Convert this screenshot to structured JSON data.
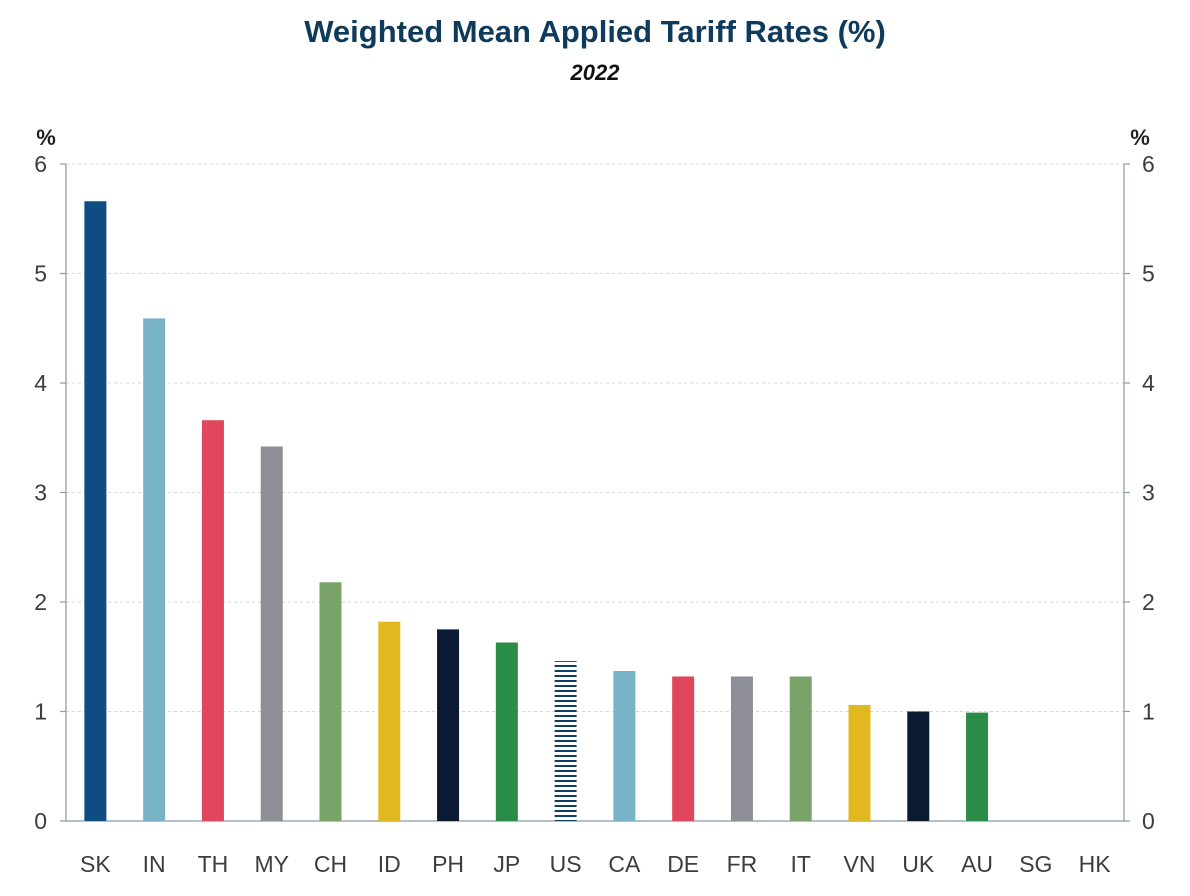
{
  "chart_data": {
    "type": "bar",
    "title": "Weighted Mean Applied Tariff Rates (%)",
    "subtitle": "2022",
    "y_unit_left": "%",
    "y_unit_right": "%",
    "ylim": [
      0,
      6
    ],
    "yticks": [
      0,
      1,
      2,
      3,
      4,
      5,
      6
    ],
    "grid": true,
    "categories": [
      "SK",
      "IN",
      "TH",
      "MY",
      "CH",
      "ID",
      "PH",
      "JP",
      "US",
      "CA",
      "DE",
      "FR",
      "IT",
      "VN",
      "UK",
      "AU",
      "SG",
      "HK"
    ],
    "values": [
      5.66,
      4.59,
      3.66,
      3.42,
      2.18,
      1.82,
      1.75,
      1.63,
      1.46,
      1.37,
      1.32,
      1.32,
      1.32,
      1.06,
      1.0,
      0.99,
      0.0,
      0.0
    ],
    "colors": [
      "#0f4c81",
      "#78b3c8",
      "#e0475c",
      "#8e8e96",
      "#7aa36a",
      "#e2b821",
      "#0b1a33",
      "#2b8c47",
      "#0f3f66",
      "#78b3c8",
      "#e0475c",
      "#8e8e96",
      "#7aa36a",
      "#e2b821",
      "#0b1a33",
      "#2b8c47",
      "#0f4c81",
      "#78b3c8"
    ],
    "hatched": [
      "US"
    ]
  }
}
